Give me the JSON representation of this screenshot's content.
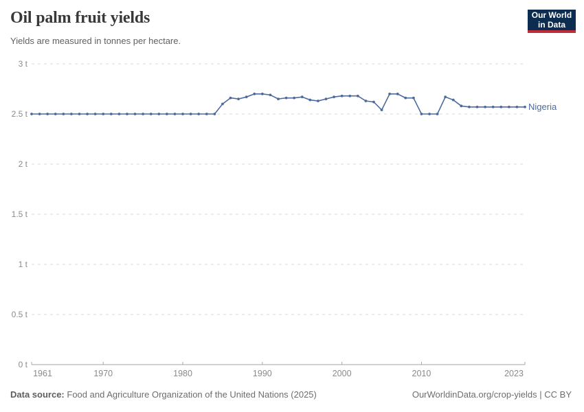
{
  "header": {
    "title": "Oil palm fruit yields",
    "subtitle": "Yields are measured in tonnes per hectare.",
    "logo": {
      "line1": "Our World",
      "line2": "in Data"
    }
  },
  "footer": {
    "source_label": "Data source:",
    "source_text": "Food and Agriculture Organization of the United Nations (2025)",
    "attribution": "OurWorldinData.org/crop-yields | CC BY"
  },
  "colors": {
    "series_blue": "#4c6a9c",
    "logo_bg": "#0d2d50",
    "logo_stripe": "#be2d3c",
    "gridline": "#dadada",
    "axis_line": "#a5a5a5",
    "axis_text": "#8a8a8a",
    "title_text": "#383838"
  },
  "chart_data": {
    "type": "line",
    "title": "Oil palm fruit yields",
    "unit": "tonnes per hectare",
    "xlim": [
      1961,
      2023
    ],
    "ylim": [
      0,
      3
    ],
    "grid": "horizontal-dashed",
    "legend_position": "end-of-line",
    "x_ticks": [
      {
        "x": 1961,
        "label": "1961"
      },
      {
        "x": 1970,
        "label": "1970"
      },
      {
        "x": 1980,
        "label": "1980"
      },
      {
        "x": 1990,
        "label": "1990"
      },
      {
        "x": 2000,
        "label": "2000"
      },
      {
        "x": 2010,
        "label": "2010"
      },
      {
        "x": 2023,
        "label": "2023"
      }
    ],
    "y_ticks": [
      {
        "v": 0,
        "label": "0 t"
      },
      {
        "v": 0.5,
        "label": "0.5 t"
      },
      {
        "v": 1,
        "label": "1 t"
      },
      {
        "v": 1.5,
        "label": "1.5 t"
      },
      {
        "v": 2,
        "label": "2 t"
      },
      {
        "v": 2.5,
        "label": "2.5 t"
      },
      {
        "v": 3,
        "label": "3 t"
      }
    ],
    "series": [
      {
        "name": "Nigeria",
        "color": "#4c6a9c",
        "x": [
          1961,
          1962,
          1963,
          1964,
          1965,
          1966,
          1967,
          1968,
          1969,
          1970,
          1971,
          1972,
          1973,
          1974,
          1975,
          1976,
          1977,
          1978,
          1979,
          1980,
          1981,
          1982,
          1983,
          1984,
          1985,
          1986,
          1987,
          1988,
          1989,
          1990,
          1991,
          1992,
          1993,
          1994,
          1995,
          1996,
          1997,
          1998,
          1999,
          2000,
          2001,
          2002,
          2003,
          2004,
          2005,
          2006,
          2007,
          2008,
          2009,
          2010,
          2011,
          2012,
          2013,
          2014,
          2015,
          2016,
          2017,
          2018,
          2019,
          2020,
          2021,
          2022,
          2023
        ],
        "values": [
          2.5,
          2.5,
          2.5,
          2.5,
          2.5,
          2.5,
          2.5,
          2.5,
          2.5,
          2.5,
          2.5,
          2.5,
          2.5,
          2.5,
          2.5,
          2.5,
          2.5,
          2.5,
          2.5,
          2.5,
          2.5,
          2.5,
          2.5,
          2.5,
          2.6,
          2.66,
          2.65,
          2.67,
          2.7,
          2.7,
          2.69,
          2.65,
          2.66,
          2.66,
          2.67,
          2.64,
          2.63,
          2.65,
          2.67,
          2.68,
          2.68,
          2.68,
          2.63,
          2.62,
          2.54,
          2.7,
          2.7,
          2.66,
          2.66,
          2.5,
          2.5,
          2.5,
          2.67,
          2.64,
          2.58,
          2.57,
          2.57,
          2.57,
          2.57,
          2.57,
          2.57,
          2.57,
          2.57
        ]
      }
    ]
  }
}
